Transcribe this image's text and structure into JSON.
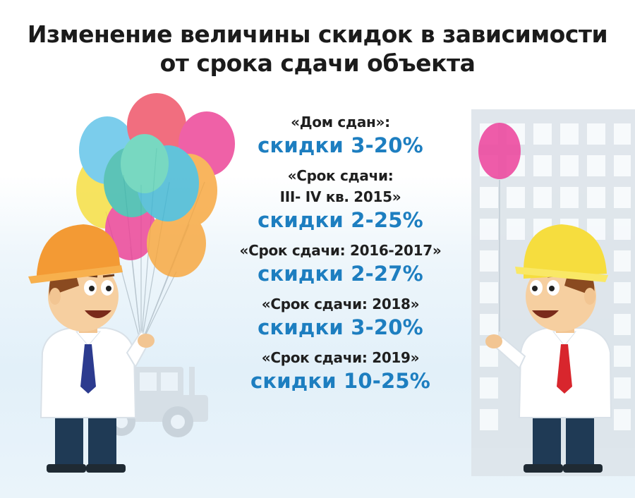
{
  "title": {
    "line1": "Изменение величины скидок в зависимости",
    "line2": "от срока сдачи объекта"
  },
  "items": [
    {
      "label": [
        "«Дом сдан»:"
      ],
      "value": "скидки 3-20%"
    },
    {
      "label": [
        "«Срок сдачи:",
        "III- IV кв. 2015»"
      ],
      "value": "скидки 2-25%"
    },
    {
      "label": [
        "«Срок сдачи: 2016-2017»"
      ],
      "value": "скидки 2-27%"
    },
    {
      "label": [
        "«Срок сдачи: 2018»"
      ],
      "value": "скидки 3-20%"
    },
    {
      "label": [
        "«Срок сдачи: 2019»"
      ],
      "value": "скидки 10-25%"
    }
  ],
  "colors": {
    "discount": "#1d7ec0",
    "text": "#1f1f1f",
    "left_helmet": "#f39a34",
    "right_helmet": "#f6dd3e",
    "left_tie": "#2c3b8f",
    "right_tie": "#d8262d"
  }
}
